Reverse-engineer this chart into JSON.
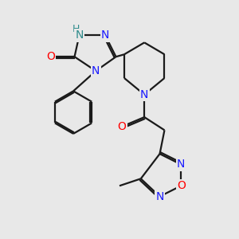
{
  "bg_color": "#e8e8e8",
  "atom_color_N": "#1a1aff",
  "atom_color_O": "#ff0000",
  "atom_color_H": "#2e8b8b",
  "atom_color_C": "#1a1a1a",
  "line_color": "#1a1a1a",
  "line_width": 1.6,
  "font_size_atom": 10,
  "fig_size": [
    3.0,
    3.0
  ],
  "dpi": 100,
  "xlim": [
    0,
    10
  ],
  "ylim": [
    0,
    10
  ]
}
